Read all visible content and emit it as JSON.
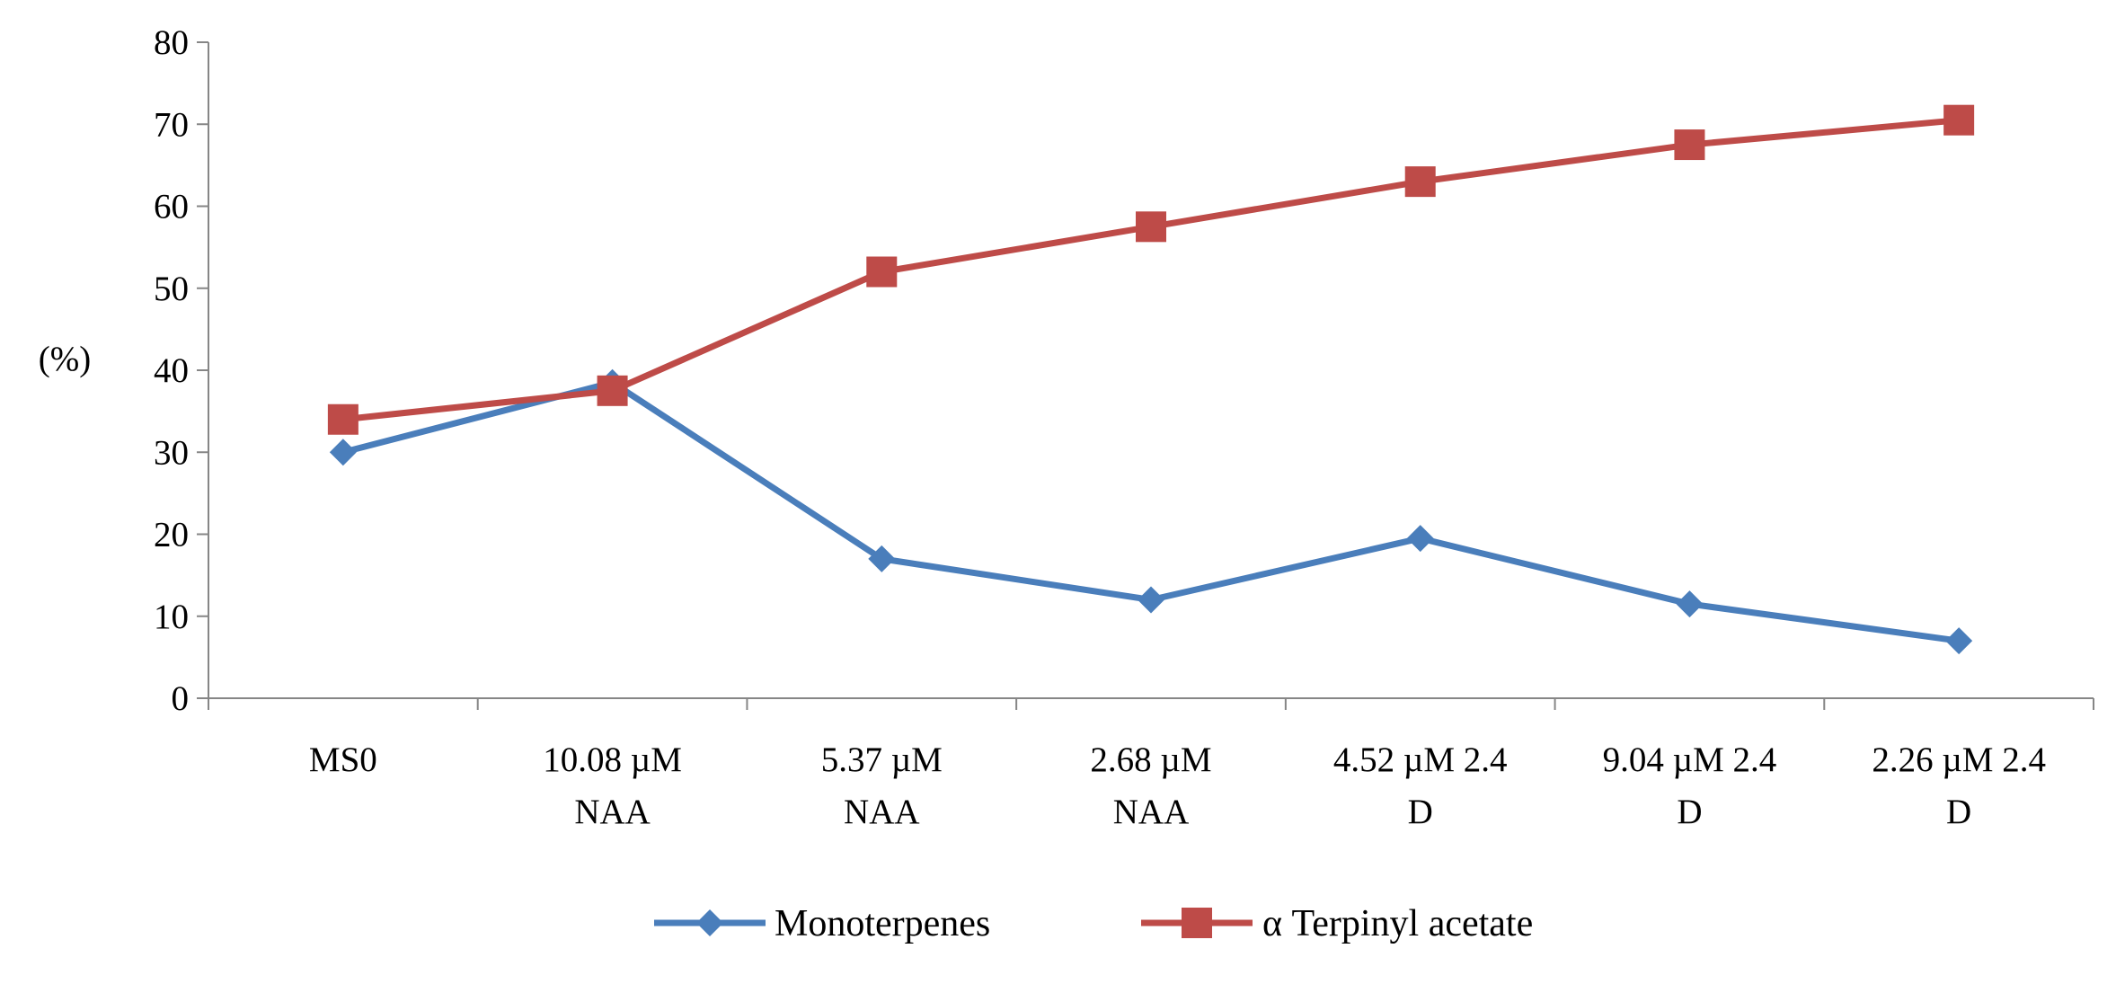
{
  "chart_data": {
    "type": "line",
    "ylabel": "(%)",
    "ylim": [
      0,
      80
    ],
    "yticks": [
      0,
      10,
      20,
      30,
      40,
      50,
      60,
      70,
      80
    ],
    "categories": [
      [
        "MS0"
      ],
      [
        "10.08 µM",
        "NAA"
      ],
      [
        "5.37 µM",
        "NAA"
      ],
      [
        "2.68  µM",
        "NAA"
      ],
      [
        "4.52   µM 2.4",
        "D"
      ],
      [
        "9.04 µM 2.4",
        "D"
      ],
      [
        "2.26   µM 2.4",
        "D"
      ]
    ],
    "series": [
      {
        "name": "Monoterpenes",
        "values": [
          30,
          38.5,
          17,
          12,
          19.5,
          11.5,
          7
        ],
        "color": "#4A7EBB",
        "marker": "diamond"
      },
      {
        "name": "α Terpinyl  acetate",
        "values": [
          34,
          37.5,
          52,
          57.5,
          63,
          67.5,
          70.5
        ],
        "color": "#BE4B48",
        "marker": "square"
      }
    ],
    "legend_position": "bottom",
    "grid": false
  }
}
